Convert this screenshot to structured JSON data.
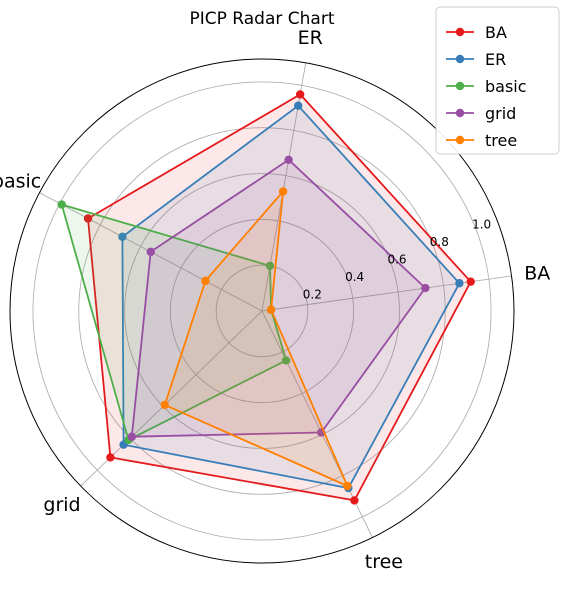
{
  "chart_data": {
    "type": "radar",
    "title": "PICP Radar Chart",
    "axes": [
      "BA",
      "ER",
      "basic",
      "grid",
      "tree"
    ],
    "radial_ticks": [
      "0.2",
      "0.4",
      "0.6",
      "0.8",
      "1.0"
    ],
    "radial_tick_values": [
      0.2,
      0.4,
      0.6,
      0.8,
      1.0
    ],
    "rlim": [
      0,
      1.1
    ],
    "grid": true,
    "legend_position": "top-right",
    "series": [
      {
        "name": "BA",
        "color": "#e41a1c",
        "values": [
          0.92,
          0.96,
          0.86,
          0.92,
          0.92
        ]
      },
      {
        "name": "ER",
        "color": "#377eb8",
        "values": [
          0.87,
          0.91,
          0.69,
          0.84,
          0.86
        ]
      },
      {
        "name": "basic",
        "color": "#4daf4a",
        "values": [
          0.04,
          0.2,
          0.99,
          0.81,
          0.24
        ]
      },
      {
        "name": "grid",
        "color": "#984ea3",
        "values": [
          0.72,
          0.67,
          0.55,
          0.79,
          0.59
        ]
      },
      {
        "name": "tree",
        "color": "#ff7f00",
        "values": [
          0.04,
          0.53,
          0.28,
          0.59,
          0.85
        ]
      }
    ]
  }
}
